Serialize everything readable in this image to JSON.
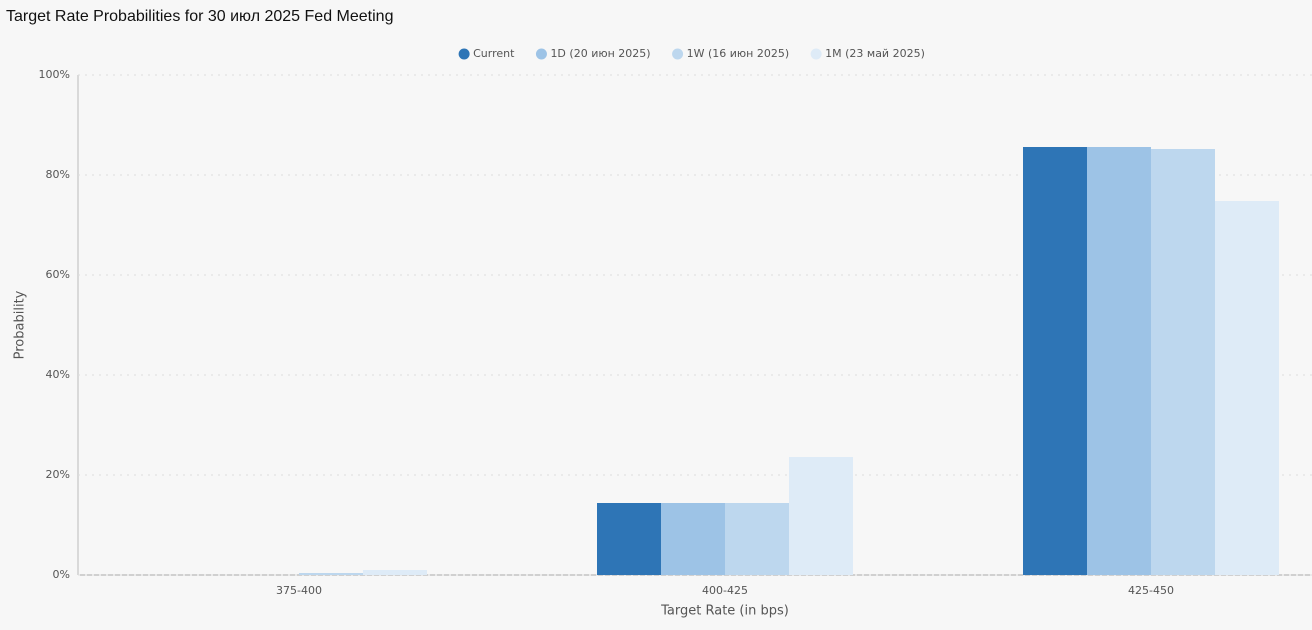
{
  "chart_data": {
    "type": "bar",
    "title": "Target Rate Probabilities for 30 июл 2025 Fed Meeting",
    "x_label": "Target Rate (in bps)",
    "y_label": "Probability",
    "categories": [
      "375-400",
      "400-425",
      "425-450"
    ],
    "series": [
      {
        "name": "Current",
        "color": "#2e75b6",
        "values": [
          0,
          14.4,
          85.6
        ]
      },
      {
        "name": "1D (20 июн 2025)",
        "color": "#9dc3e6",
        "values": [
          0,
          14.4,
          85.6
        ]
      },
      {
        "name": "1W (16 июн 2025)",
        "color": "#bdd7ee",
        "values": [
          0.4,
          14.4,
          85.2
        ]
      },
      {
        "name": "1M (23 май 2025)",
        "color": "#deebf7",
        "values": [
          1.0,
          23.6,
          74.8
        ]
      }
    ],
    "ylim": [
      0,
      100
    ],
    "yticks": [
      {
        "value": 0,
        "label": "0%"
      },
      {
        "value": 20,
        "label": "20%"
      },
      {
        "value": 40,
        "label": "40%"
      },
      {
        "value": 60,
        "label": "60%"
      },
      {
        "value": 80,
        "label": "80%"
      },
      {
        "value": 100,
        "label": "100%"
      }
    ],
    "grid": true
  }
}
